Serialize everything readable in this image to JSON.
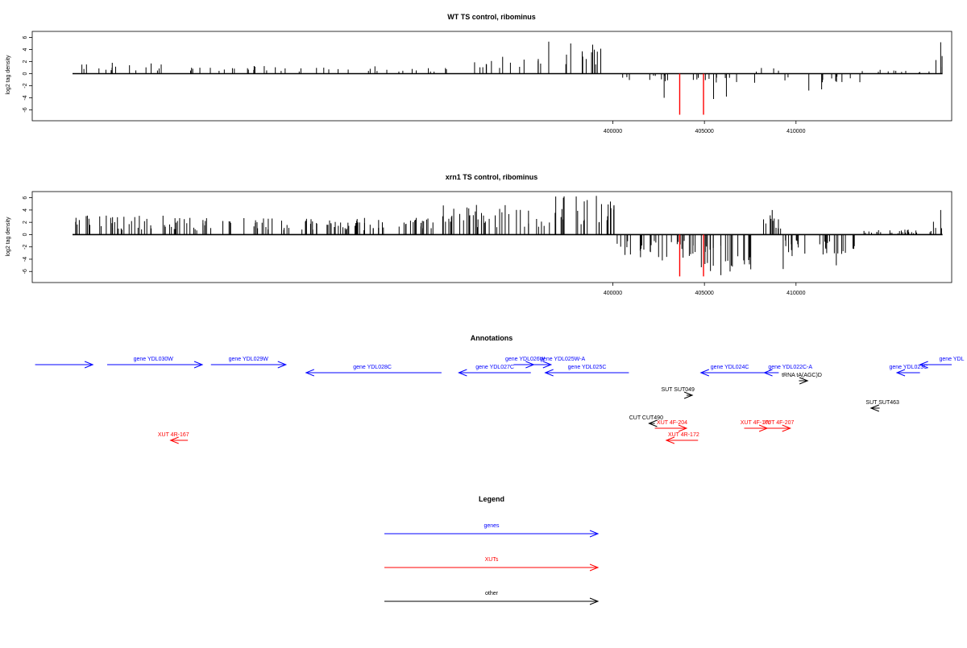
{
  "chart_data": [
    {
      "type": "bar",
      "title": "WT TS control, ribominus",
      "ylabel": "log2 tag density",
      "xlabel": "",
      "xlim": [
        368300,
        418500
      ],
      "ylim": [
        -7.8,
        7.0
      ],
      "yticks": [
        -6,
        -4,
        -2,
        0,
        2,
        4,
        6
      ],
      "xticks": [
        400000,
        405000,
        410000
      ],
      "xtick_labels": [
        "400000",
        "405000",
        "410000"
      ],
      "bar_color": "#000000",
      "highlight_color": "#ff0000",
      "highlights": [
        {
          "x": 403650,
          "value": -6.8
        },
        {
          "x": 404950,
          "value": -6.8
        }
      ],
      "peaks": [
        {
          "x": 396500,
          "value": 5.3
        },
        {
          "x": 397700,
          "value": 5.0
        },
        {
          "x": 398900,
          "value": 4.8
        },
        {
          "x": 402800,
          "value": -4.0
        },
        {
          "x": 405500,
          "value": -4.2
        },
        {
          "x": 406200,
          "value": -3.8
        },
        {
          "x": 410700,
          "value": -2.8
        },
        {
          "x": 411400,
          "value": -2.6
        },
        {
          "x": 417900,
          "value": 5.2
        }
      ],
      "segments": [
        {
          "from": 370500,
          "to": 376500,
          "mean": 0.9
        },
        {
          "from": 376500,
          "to": 390500,
          "mean": 0.6
        },
        {
          "from": 390500,
          "to": 396500,
          "mean": 1.4
        },
        {
          "from": 396500,
          "to": 400200,
          "mean": 2.4
        },
        {
          "from": 400200,
          "to": 402700,
          "mean": -0.5
        },
        {
          "from": 402700,
          "to": 404600,
          "mean": -0.7
        },
        {
          "from": 404600,
          "to": 407800,
          "mean": -0.9
        },
        {
          "from": 407800,
          "to": 409300,
          "mean": 0.6
        },
        {
          "from": 409300,
          "to": 413500,
          "mean": -0.7
        },
        {
          "from": 413500,
          "to": 417500,
          "mean": 0.3
        },
        {
          "from": 417500,
          "to": 418000,
          "mean": 1.8
        }
      ],
      "bar_count": 130,
      "seed": 11
    },
    {
      "type": "bar",
      "title": "xrn1 TS control, ribominus",
      "ylabel": "log2 tag density",
      "xlabel": "",
      "xlim": [
        368300,
        418500
      ],
      "ylim": [
        -7.8,
        7.0
      ],
      "yticks": [
        -6,
        -4,
        -2,
        0,
        2,
        4,
        6
      ],
      "xticks": [
        400000,
        405000,
        410000
      ],
      "xtick_labels": [
        "400000",
        "405000",
        "410000"
      ],
      "bar_color": "#000000",
      "highlight_color": "#ff0000",
      "highlights": [
        {
          "x": 403650,
          "value": -6.8
        },
        {
          "x": 404950,
          "value": -6.8
        }
      ],
      "peaks": [
        {
          "x": 397300,
          "value": 6.0
        },
        {
          "x": 398000,
          "value": 6.2
        },
        {
          "x": 399100,
          "value": 6.3
        },
        {
          "x": 402700,
          "value": -4.2
        },
        {
          "x": 405900,
          "value": -6.6
        },
        {
          "x": 406400,
          "value": -6.0
        },
        {
          "x": 408700,
          "value": 4.0
        },
        {
          "x": 409300,
          "value": -5.6
        },
        {
          "x": 412200,
          "value": -5.0
        },
        {
          "x": 417900,
          "value": 4.0
        }
      ],
      "segments": [
        {
          "from": 370500,
          "to": 376500,
          "mean": 1.5
        },
        {
          "from": 376500,
          "to": 390500,
          "mean": 1.3
        },
        {
          "from": 390500,
          "to": 396500,
          "mean": 2.3
        },
        {
          "from": 396500,
          "to": 400200,
          "mean": 3.0
        },
        {
          "from": 400200,
          "to": 402700,
          "mean": -1.8
        },
        {
          "from": 402700,
          "to": 404600,
          "mean": -1.8
        },
        {
          "from": 404600,
          "to": 407800,
          "mean": -2.8
        },
        {
          "from": 407800,
          "to": 409300,
          "mean": 1.6
        },
        {
          "from": 409300,
          "to": 413500,
          "mean": -1.7
        },
        {
          "from": 413500,
          "to": 417500,
          "mean": 0.4
        },
        {
          "from": 417500,
          "to": 418000,
          "mean": 2.0
        }
      ],
      "bar_count": 330,
      "seed": 29
    }
  ],
  "annotations": {
    "title": "Annotations",
    "genes": [
      {
        "label": "",
        "from": 368400,
        "to": 370400,
        "strand": "+",
        "row": 0,
        "label_x": 369400
      },
      {
        "label": "gene YDL030W",
        "from": 370900,
        "to": 374200,
        "strand": "+",
        "row": 0,
        "label_x": 372500
      },
      {
        "label": "gene YDL029W",
        "from": 374500,
        "to": 377100,
        "strand": "+",
        "row": 0,
        "label_x": 375800
      },
      {
        "label": "gene YDL028C",
        "from": 377800,
        "to": 382500,
        "strand": "-",
        "row": 1,
        "label_x": 380100
      },
      {
        "label": "gene YDL027C",
        "from": 383100,
        "to": 385600,
        "strand": "-",
        "row": 1,
        "label_x": 384350
      },
      {
        "label": "gene YDL026W",
        "from": 385000,
        "to": 385700,
        "strand": "+",
        "row": 0,
        "label_x": 385400
      },
      {
        "label": "gene YDL025W-A",
        "from": 385700,
        "to": 386300,
        "strand": "+",
        "row": 0,
        "label_x": 386700
      },
      {
        "label": "gene YDL025C",
        "from": 386100,
        "to": 389000,
        "strand": "-",
        "row": 1,
        "label_x": 387550
      },
      {
        "label": "gene YDL024C",
        "from": 391500,
        "to": 393700,
        "strand": "-",
        "row": 1,
        "label_x": 392500
      },
      {
        "label": "gene YDL022C-A",
        "from": 393700,
        "to": 394200,
        "strand": "-",
        "row": 1,
        "label_x": 394600
      },
      {
        "label": "gene YDL023C",
        "from": 398300,
        "to": 399100,
        "strand": "-",
        "row": 1,
        "label_x": 398700
      },
      {
        "label": "gene YDL",
        "from": 399100,
        "to": 400200,
        "strand": "-",
        "row": 0,
        "label_x": 400200
      }
    ],
    "others": [
      {
        "label": "tRNA tA(AGC)D",
        "from": 394900,
        "to": 395200,
        "strand": "+",
        "row": 2,
        "label_x": 395000
      },
      {
        "label": "SUT SUT049",
        "from": 391000,
        "to": 391200,
        "strand": "+",
        "row": 3,
        "label_x": 390700
      },
      {
        "label": "SUT SUT463",
        "from": 397400,
        "to": 397700,
        "strand": "-",
        "row": 4,
        "label_x": 397800
      },
      {
        "label": "CUT CUT490",
        "from": 389700,
        "to": 389900,
        "strand": "-",
        "row": 5,
        "label_x": 389600
      }
    ],
    "xuts": [
      {
        "label": "XUT 4R-167",
        "from": 373100,
        "to": 373700,
        "strand": "-",
        "row": 7,
        "label_x": 373200
      },
      {
        "label": "XUT 4F-204",
        "from": 389900,
        "to": 391000,
        "strand": "+",
        "row": 6,
        "label_x": 390500
      },
      {
        "label": "XUT 4R-172",
        "from": 390300,
        "to": 391400,
        "strand": "-",
        "row": 7,
        "label_x": 390900
      },
      {
        "label": "XUT 4F-176",
        "from": 393000,
        "to": 393800,
        "strand": "+",
        "row": 6,
        "label_x": 393400
      },
      {
        "label": "XUT 4F-207",
        "from": 393800,
        "to": 394600,
        "strand": "+",
        "row": 6,
        "label_x": 394200
      }
    ]
  },
  "legend": {
    "title": "Legend",
    "items": [
      {
        "label": "genes",
        "color": "#0000ff"
      },
      {
        "label": "XUTs",
        "color": "#ff0000"
      },
      {
        "label": "other",
        "color": "#000000"
      }
    ]
  },
  "colors": {
    "genes": "#0000ff",
    "xuts": "#ff0000",
    "other": "#000000"
  }
}
